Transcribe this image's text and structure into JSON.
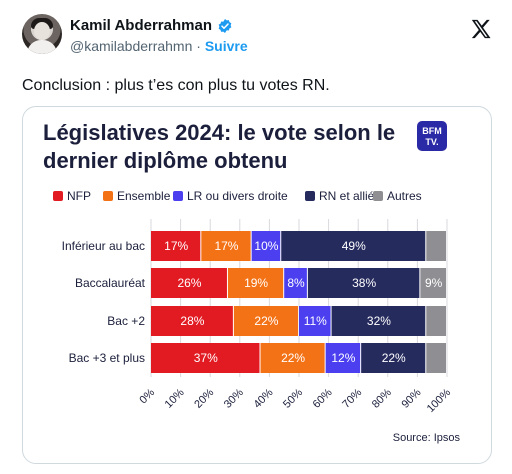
{
  "tweet": {
    "user_name": "Kamil Abderrahman",
    "handle": "@kamilabderrahmn",
    "separator": " · ",
    "follow_label": "Suivre",
    "text": "Conclusion : plus t’es con plus tu votes RN."
  },
  "icons": {
    "verified": "verified-badge-icon",
    "brand": "x-logo-icon",
    "media_logo": "bfmtv-logo"
  },
  "colors": {
    "verified": "#1d9bf0",
    "follow": "#1d9bf0"
  },
  "chart_data": {
    "type": "bar",
    "stacked": true,
    "orientation": "horizontal",
    "title": "Législatives 2024: le vote selon le dernier diplôme obtenu",
    "title_lines": [
      "Législatives 2024: le vote selon le",
      "dernier diplôme obtenu"
    ],
    "logo_text": [
      "BFM",
      "TV."
    ],
    "categories": [
      "Inférieur au bac",
      "Baccalauréat",
      "Bac +2",
      "Bac +3 et plus"
    ],
    "series": [
      {
        "name": "NFP",
        "color": "#e21b23",
        "values": [
          17,
          26,
          28,
          37
        ],
        "labels": [
          "17%",
          "26%",
          "28%",
          "37%"
        ]
      },
      {
        "name": "Ensemble",
        "color": "#f47216",
        "values": [
          17,
          19,
          22,
          22
        ],
        "labels": [
          "17%",
          "19%",
          "22%",
          "22%"
        ]
      },
      {
        "name": "LR ou divers droite",
        "color": "#4b3ff0",
        "values": [
          10,
          8,
          11,
          12
        ],
        "labels": [
          "10%",
          "8%",
          "11%",
          "12%"
        ]
      },
      {
        "name": "RN et alliés",
        "color": "#262b5e",
        "values": [
          49,
          38,
          32,
          22
        ],
        "labels": [
          "49%",
          "38%",
          "32%",
          "22%"
        ]
      },
      {
        "name": "Autres",
        "color": "#8e8e93",
        "values": [
          7,
          9,
          7,
          7
        ],
        "labels": [
          "",
          "9%",
          "",
          ""
        ]
      }
    ],
    "xticks": [
      "0%",
      "10%",
      "20%",
      "30%",
      "40%",
      "50%",
      "60%",
      "70%",
      "80%",
      "90%",
      "100%"
    ],
    "xlim": [
      0,
      100
    ],
    "grid": true,
    "legend_position": "top",
    "source": "Source: Ipsos"
  }
}
